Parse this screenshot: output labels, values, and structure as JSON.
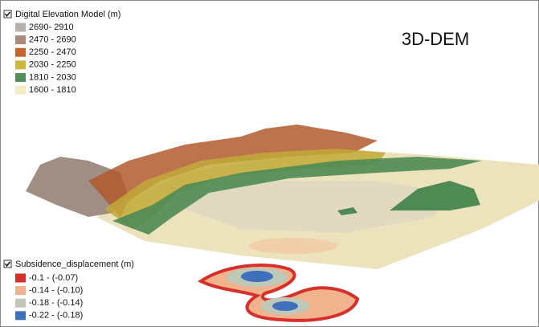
{
  "title": "3D-DEM",
  "elevation_legend": {
    "title": "Digital Elevation Model (m)",
    "items": [
      {
        "label": "2690- 2910",
        "color": "#b5b1ad"
      },
      {
        "label": "2470 - 2690",
        "color": "#a88b7b"
      },
      {
        "label": "2250 - 2470",
        "color": "#c4652f"
      },
      {
        "label": "2030 - 2250",
        "color": "#cdb63e"
      },
      {
        "label": "1810 - 2030",
        "color": "#52905a"
      },
      {
        "label": "1600 - 1810",
        "color": "#f4edc4"
      }
    ]
  },
  "subsidence_legend": {
    "title": "Subsidence_displacement (m)",
    "items": [
      {
        "label": "-0.1 - (-0.07)",
        "color": "#d7302a"
      },
      {
        "label": "-0.14 - (-0.10)",
        "color": "#f1b38d"
      },
      {
        "label": "-0.18 - (-0.14)",
        "color": "#bfc8b8"
      },
      {
        "label": "-0.22 - (-0.18)",
        "color": "#3f70bb"
      }
    ]
  }
}
